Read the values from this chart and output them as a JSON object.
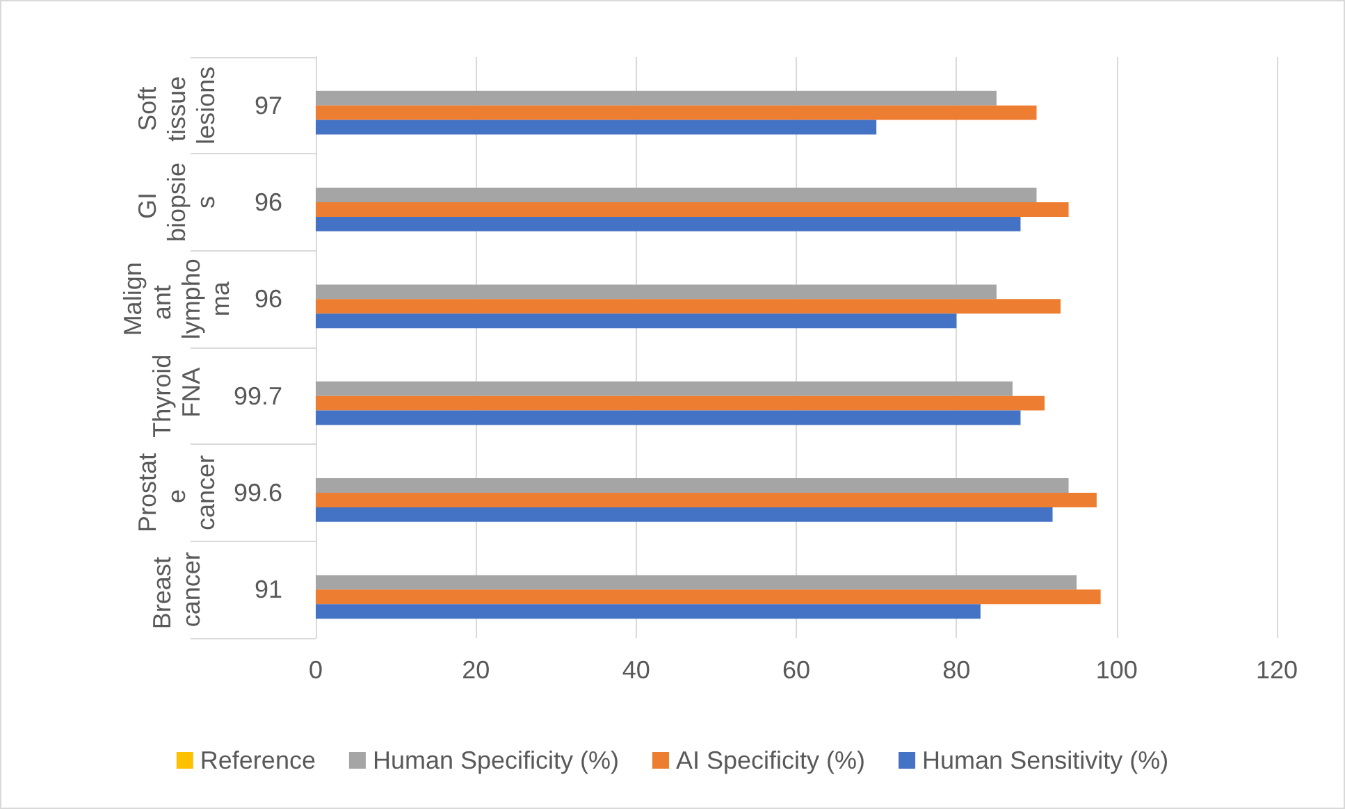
{
  "chart_data": {
    "type": "bar",
    "orientation": "horizontal",
    "categories": [
      "Soft tissue lesions",
      "GI biopsies",
      "Malignant lymphoma",
      "Thyroid FNA",
      "Prostate cancer",
      "Breast cancer"
    ],
    "series": [
      {
        "name": "Reference",
        "color": "#ffc000",
        "values": [
          null,
          null,
          null,
          null,
          null,
          null
        ]
      },
      {
        "name": "Human Specificity (%)",
        "color": "#a5a5a5",
        "values": [
          85,
          90,
          85,
          87,
          94,
          95
        ]
      },
      {
        "name": "AI Specificity (%)",
        "color": "#ed7d31",
        "values": [
          90,
          94,
          93,
          91,
          97.5,
          98
        ]
      },
      {
        "name": "Human Sensitivity (%)",
        "color": "#4472c4",
        "values": [
          70,
          88,
          80,
          88,
          92,
          83
        ]
      }
    ],
    "annotations": [
      "97",
      "96",
      "96",
      "99.7",
      "99.6",
      "91"
    ],
    "xlim": [
      0,
      120
    ],
    "xticks": [
      0,
      20,
      40,
      60,
      80,
      100,
      120
    ],
    "grid": "x",
    "legend": "bottom"
  }
}
